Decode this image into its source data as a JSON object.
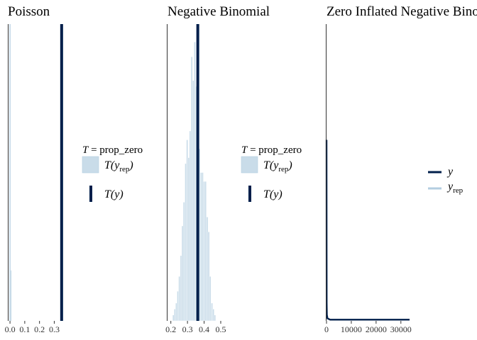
{
  "chart_data": [
    {
      "panel": "Poisson",
      "type": "bar",
      "title": "Poisson",
      "xlim": [
        -0.01,
        0.37
      ],
      "x_ticks": [
        0.0,
        0.1,
        0.2,
        0.3
      ],
      "x_tick_labels": [
        "0.0",
        "0.1",
        "0.2",
        "0.3"
      ],
      "yrep_hist": {
        "x": [
          0.0,
          0.005
        ],
        "heights": [
          1.0,
          0.17
        ]
      },
      "observed": 0.35,
      "legend": {
        "title_lhs": "T",
        "title_eq": " = prop_zero",
        "items": [
          {
            "base": "T(y",
            "sub": "rep",
            "tail": ")",
            "color": "#c9dce9"
          },
          {
            "base": "T(y)",
            "sub": "",
            "tail": "",
            "color": "#011f4b"
          }
        ]
      }
    },
    {
      "panel": "Negative Binomial",
      "type": "bar",
      "title": "Negative Binomial",
      "xlim": [
        0.18,
        0.53
      ],
      "x_ticks": [
        0.2,
        0.3,
        0.4,
        0.5
      ],
      "x_tick_labels": [
        "0.2",
        "0.3",
        "0.4",
        "0.5"
      ],
      "yrep_hist": {
        "bin_width": 0.0093,
        "x": [
          0.215,
          0.224,
          0.233,
          0.242,
          0.251,
          0.261,
          0.27,
          0.279,
          0.289,
          0.298,
          0.307,
          0.316,
          0.326,
          0.335,
          0.344,
          0.354,
          0.363,
          0.372,
          0.382,
          0.391,
          0.4,
          0.409,
          0.419,
          0.428,
          0.437,
          0.447,
          0.456,
          0.465
        ],
        "heights": [
          0.02,
          0.04,
          0.06,
          0.1,
          0.15,
          0.22,
          0.32,
          0.4,
          0.53,
          0.61,
          0.55,
          0.64,
          0.89,
          0.81,
          0.94,
          0.79,
          0.67,
          0.58,
          0.5,
          0.5,
          0.47,
          0.47,
          0.35,
          0.3,
          0.15,
          0.06,
          0.04,
          0.02
        ]
      },
      "observed": 0.362,
      "legend": {
        "title_lhs": "T",
        "title_eq": " = prop_zero",
        "items": [
          {
            "base": "T(y",
            "sub": "rep",
            "tail": ")",
            "color": "#c9dce9"
          },
          {
            "base": "T(y)",
            "sub": "",
            "tail": "",
            "color": "#011f4b"
          }
        ]
      }
    },
    {
      "panel": "Zero Inflated Negative Binomial",
      "type": "line",
      "title": "Zero Inflated Negative Binomial",
      "xlim": [
        0,
        33500
      ],
      "x_ticks": [
        0,
        10000,
        20000,
        30000
      ],
      "x_tick_labels": [
        "0",
        "10000",
        "20000",
        "30000"
      ],
      "y_density": {
        "x": [
          0,
          20,
          60,
          150,
          400,
          1500,
          33500
        ],
        "y": [
          0.61,
          0.25,
          0.06,
          0.02,
          0.008,
          0.004,
          0.004
        ]
      },
      "yrep_density": {
        "x": [
          0,
          20,
          60,
          150,
          400,
          1500,
          33500
        ],
        "y": [
          0.6,
          0.24,
          0.06,
          0.02,
          0.008,
          0.004,
          0.004
        ]
      },
      "legend": {
        "items": [
          {
            "base": "y",
            "sub": "",
            "color": "#011f4b"
          },
          {
            "base": "y",
            "sub": "rep",
            "color": "#b3cde0"
          }
        ]
      }
    }
  ],
  "colors": {
    "yrep_fill": "#c9dce9",
    "yrep_stroke": "#ffffff",
    "yrep_line": "#b3cde0",
    "observed": "#011f4b",
    "axis": "#333333"
  }
}
